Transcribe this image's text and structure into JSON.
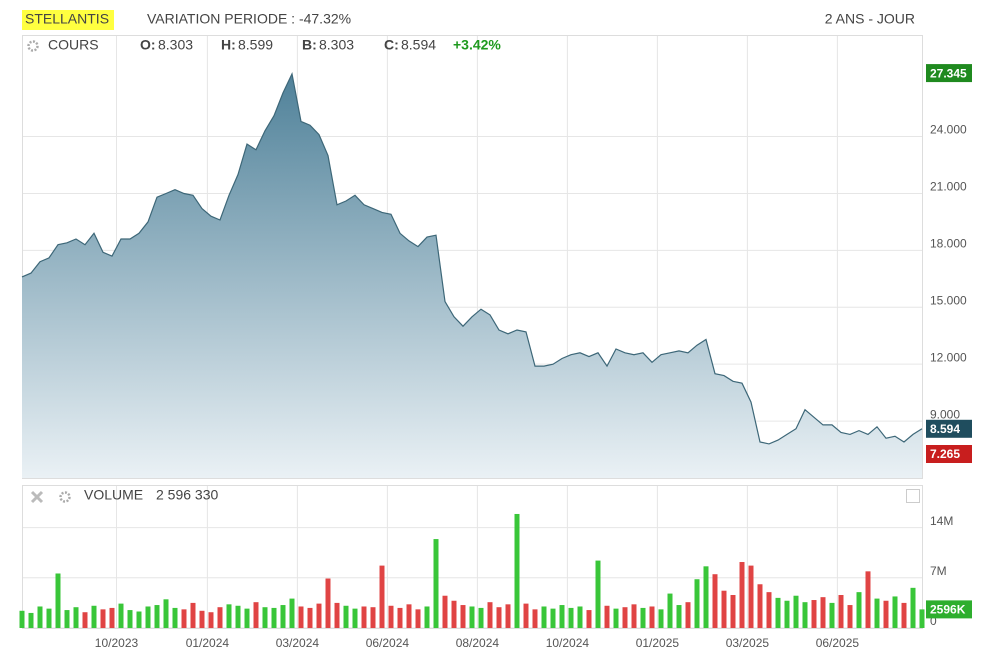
{
  "chart_data": [
    {
      "type": "area",
      "title": "STELLANTIS",
      "subtitle": "VARIATION PERIODE : -47.32%",
      "period": "2 ANS - JOUR",
      "legend": "COURS",
      "ohlc": [
        {
          "label": "O:",
          "value": 8.303
        },
        {
          "label": "H:",
          "value": 8.599
        },
        {
          "label": "B:",
          "value": 8.303
        },
        {
          "label": "C:",
          "value": 8.594
        }
      ],
      "change": "+3.42%",
      "color": "#3d6778",
      "values": [
        16.6,
        16.8,
        17.4,
        17.6,
        18.3,
        18.4,
        18.6,
        18.3,
        18.9,
        17.9,
        17.7,
        18.6,
        18.6,
        18.9,
        19.5,
        20.8,
        21.0,
        21.2,
        21.0,
        20.9,
        20.2,
        19.8,
        19.6,
        20.9,
        22.0,
        23.6,
        23.3,
        24.3,
        25.1,
        26.3,
        27.3,
        24.8,
        24.6,
        24.1,
        23.0,
        20.4,
        20.6,
        20.9,
        20.4,
        20.2,
        20.0,
        19.9,
        18.9,
        18.5,
        18.2,
        18.7,
        18.8,
        15.3,
        14.5,
        14.0,
        14.5,
        14.9,
        14.6,
        13.8,
        13.6,
        13.8,
        13.7,
        11.9,
        11.9,
        12.0,
        12.3,
        12.5,
        12.6,
        12.4,
        12.6,
        11.9,
        12.8,
        12.6,
        12.5,
        12.6,
        12.1,
        12.5,
        12.6,
        12.7,
        12.6,
        13.0,
        13.3,
        11.5,
        11.4,
        11.1,
        11.0,
        10.0,
        7.9,
        7.8,
        8.0,
        8.3,
        8.6,
        9.6,
        9.2,
        8.8,
        8.8,
        8.4,
        8.3,
        8.5,
        8.3,
        8.7,
        8.1,
        8.2,
        7.9,
        8.3,
        8.594
      ],
      "xlim": [
        0,
        100
      ],
      "ylim": [
        6,
        29.3
      ],
      "yticks": [
        {
          "value": 9,
          "label": "9.000"
        },
        {
          "value": 12,
          "label": "12.000"
        },
        {
          "value": 15,
          "label": "15.000"
        },
        {
          "value": 18,
          "label": "18.000"
        },
        {
          "value": 21,
          "label": "21.000"
        },
        {
          "value": 24,
          "label": "24.000"
        }
      ],
      "high": 27.345,
      "last": 8.594,
      "low": 7.265,
      "grid": true
    },
    {
      "type": "bar",
      "title": "VOLUME",
      "current": "2 596 330",
      "up_color": "#39c639",
      "down_color": "#e04444",
      "values": [
        2.4,
        2.1,
        3.0,
        2.7,
        7.6,
        2.5,
        2.9,
        2.2,
        3.1,
        2.6,
        2.8,
        3.4,
        2.5,
        2.3,
        3.0,
        3.2,
        4.0,
        2.8,
        2.6,
        3.5,
        2.4,
        2.2,
        2.9,
        3.3,
        3.1,
        2.7,
        3.6,
        2.9,
        2.8,
        3.2,
        4.1,
        3.0,
        2.8,
        3.4,
        6.9,
        3.5,
        3.1,
        2.7,
        3.0,
        2.9,
        8.7,
        3.1,
        2.8,
        3.3,
        2.6,
        3.0,
        12.4,
        4.5,
        3.8,
        3.2,
        3.0,
        2.8,
        3.6,
        2.9,
        3.3,
        15.9,
        3.4,
        2.6,
        3.0,
        2.7,
        3.2,
        2.8,
        3.0,
        2.5,
        9.4,
        3.1,
        2.7,
        2.9,
        3.3,
        2.8,
        3.0,
        2.6,
        4.8,
        3.2,
        3.6,
        6.8,
        8.6,
        7.5,
        5.2,
        4.6,
        9.2,
        8.7,
        6.1,
        5.0,
        4.2,
        3.8,
        4.5,
        3.6,
        3.9,
        4.3,
        3.5,
        4.6,
        3.2,
        5.0,
        7.9,
        4.1,
        3.8,
        4.4,
        3.5,
        5.6,
        2.59633
      ],
      "last": 2.59633,
      "last_label": "2596K",
      "xlim": [
        0,
        100
      ],
      "ylim": [
        0,
        19.8
      ],
      "yticks": [
        0,
        {
          "value": 7,
          "label": "7M"
        },
        {
          "value": 14,
          "label": "14M"
        }
      ],
      "xticks": [
        {
          "value": 10.5,
          "label": "10/2023"
        },
        {
          "value": 20.6,
          "label": "01/2024"
        },
        {
          "value": 30.6,
          "label": "03/2024"
        },
        {
          "value": 40.6,
          "label": "06/2024"
        },
        {
          "value": 50.6,
          "label": "08/2024"
        },
        {
          "value": 60.6,
          "label": "10/2024"
        },
        {
          "value": 70.6,
          "label": "01/2025"
        },
        {
          "value": 80.6,
          "label": "03/2025"
        },
        {
          "value": 90.6,
          "label": "06/2025"
        }
      ]
    }
  ]
}
